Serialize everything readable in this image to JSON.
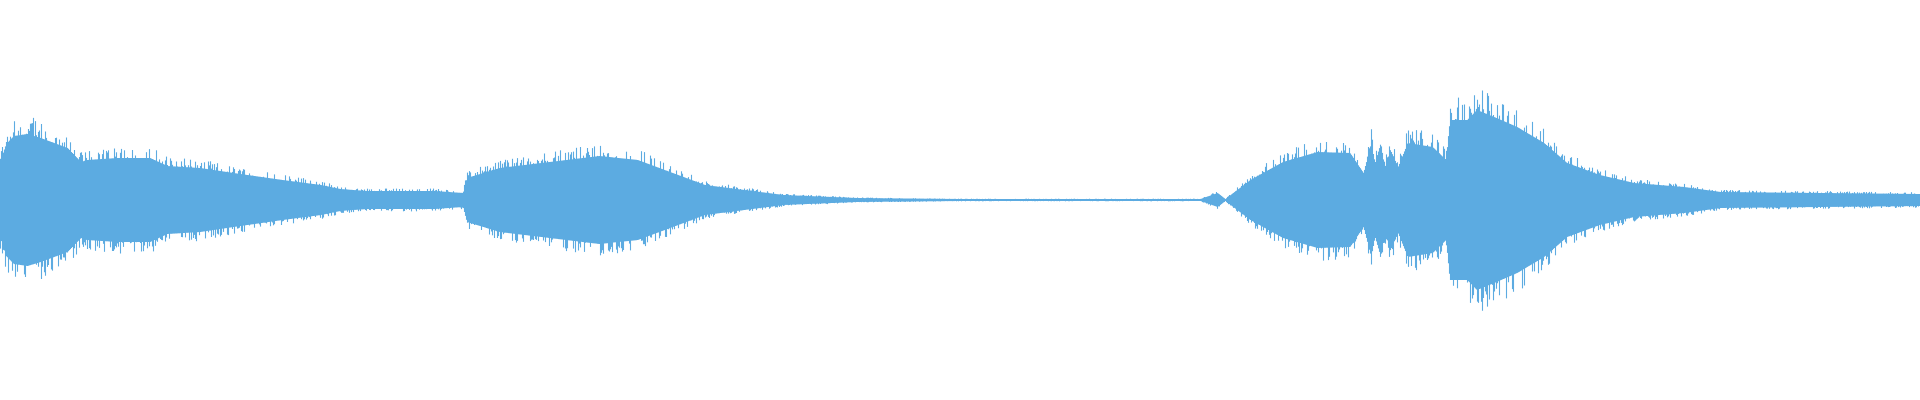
{
  "chart_data": {
    "type": "area",
    "description_kind": "audio-waveform",
    "title": "",
    "xlabel": "",
    "ylabel": "",
    "axes_visible": false,
    "grid": false,
    "color": "#5dabe1",
    "background": "#ffffff",
    "ylim": [
      -1,
      1
    ],
    "envelope": {
      "t_percent": [
        0,
        0.3,
        0.7,
        1.4,
        2.1,
        3.5,
        4.2,
        4.5,
        6.1,
        7.8,
        8.7,
        10.4,
        12.5,
        14.7,
        16.7,
        17.7,
        19.1,
        22.6,
        24.1,
        24.3,
        26.0,
        31.2,
        33.2,
        36.7,
        40.8,
        44.6,
        50,
        63.8,
        62.5,
        63.4,
        65.1,
        66.8,
        68.6,
        70.3,
        71.0,
        71.4,
        71.6,
        71.9,
        72.1,
        72.4,
        72.8,
        73.3,
        74.6,
        75.3,
        75.5,
        76.4,
        76.9,
        77.8,
        79.0,
        80.4,
        81.6,
        83.3,
        85.1,
        87.7,
        89.6,
        100
      ],
      "amplitude": [
        0.19,
        0.28,
        0.32,
        0.33,
        0.31,
        0.26,
        0.19,
        0.2,
        0.21,
        0.21,
        0.17,
        0.16,
        0.13,
        0.1,
        0.075,
        0.055,
        0.045,
        0.045,
        0.035,
        0.11,
        0.16,
        0.22,
        0.2,
        0.075,
        0.025,
        0.01,
        0.005,
        0.005,
        0.005,
        0.035,
        0.1,
        0.19,
        0.24,
        0.235,
        0.135,
        0.285,
        0.185,
        0.285,
        0.16,
        0.25,
        0.165,
        0.285,
        0.265,
        0.2,
        0.4,
        0.4,
        0.45,
        0.415,
        0.365,
        0.285,
        0.185,
        0.125,
        0.085,
        0.065,
        0.04,
        0.03
      ]
    }
  }
}
